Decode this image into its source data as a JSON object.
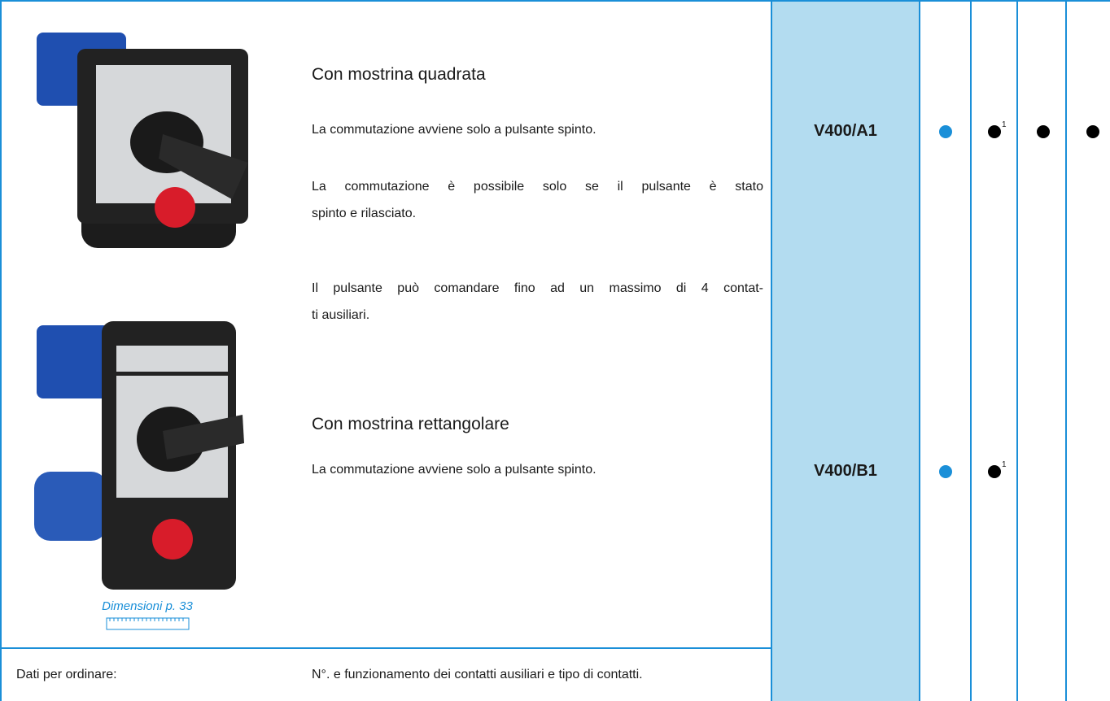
{
  "variants": [
    {
      "title": "Con mostrina quadrata",
      "paragraphs": [
        [
          "La commutazione avviene solo a pulsante spinto."
        ],
        [
          "La commutazione è possibile solo se il pulsante è stato",
          "spinto e rilasciato."
        ],
        [
          "Il pulsante può comandare fino ad un massimo di 4 contat-",
          "ti ausiliari."
        ]
      ],
      "model": "V400/A1",
      "cells": [
        {
          "dot": "#1a8fd8"
        },
        {
          "dot": "#000000",
          "note": "1"
        },
        {
          "dot": "#000000"
        },
        {
          "dot": "#000000"
        }
      ]
    },
    {
      "title": "Con mostrina rettangolare",
      "paragraphs": [
        [
          "La commutazione avviene solo a pulsante spinto."
        ]
      ],
      "model": "V400/B1",
      "cells": [
        {
          "dot": "#1a8fd8"
        },
        {
          "dot": "#000000",
          "note": "1"
        }
      ]
    }
  ],
  "dimensions_link": "Dimensioni p. 33",
  "footer": {
    "label": "Dati per ordinare:",
    "text": "N°. e funzionamento dei contatti ausiliari e tipo di contatti."
  }
}
